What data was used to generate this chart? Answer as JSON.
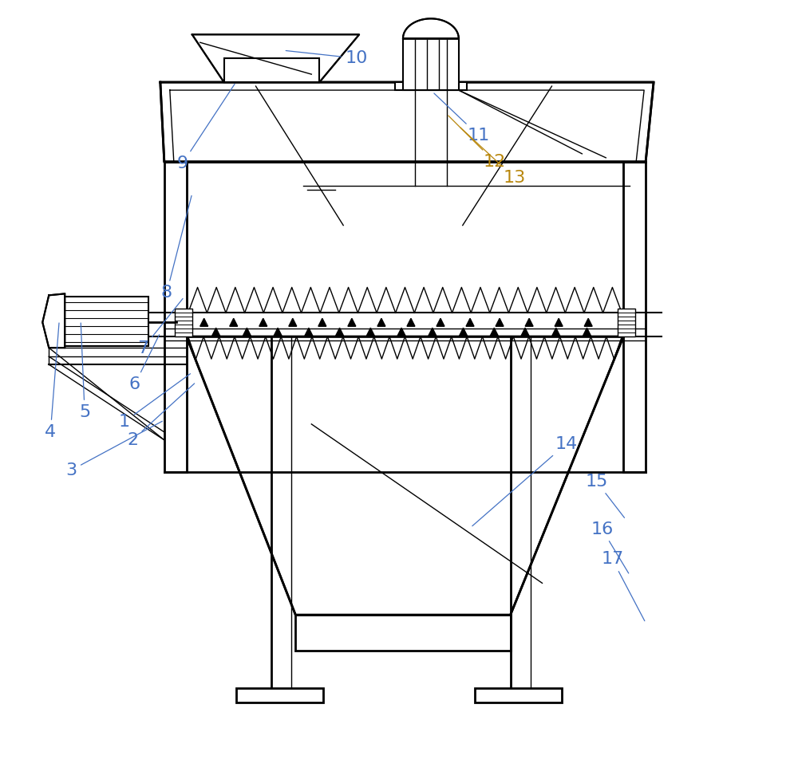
{
  "bg_color": "#ffffff",
  "line_color": "#000000",
  "label_color": "#4472c4",
  "label_color2": "#b8860b",
  "fig_width": 10.0,
  "fig_height": 9.82
}
